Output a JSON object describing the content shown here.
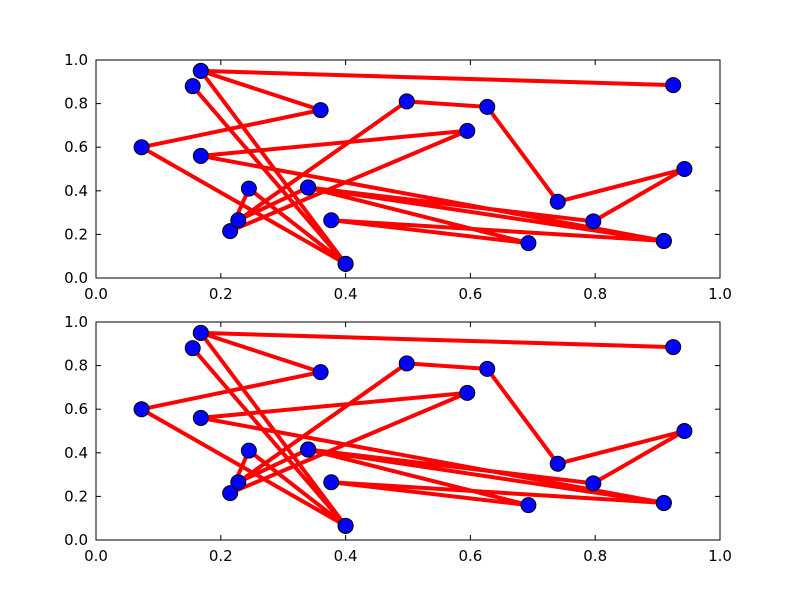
{
  "chart_data": [
    {
      "type": "line",
      "title": "",
      "xlabel": "",
      "ylabel": "",
      "xlim": [
        0.0,
        1.0
      ],
      "ylim": [
        0.0,
        1.0
      ],
      "x_ticks": [
        "0.0",
        "0.2",
        "0.4",
        "0.6",
        "0.8",
        "1.0"
      ],
      "y_ticks": [
        "0.0",
        "0.2",
        "0.4",
        "0.6",
        "0.8",
        "1.0"
      ],
      "grid": false,
      "legend": "none",
      "line_color": "#ff0000",
      "marker_color": "#0000ff",
      "marker_edge_color": "#000000",
      "x": [
        0.155,
        0.4,
        0.168,
        0.925,
        0.168,
        0.36,
        0.073,
        0.4,
        0.245,
        0.215,
        0.595,
        0.168,
        0.91,
        0.34,
        0.693,
        0.377,
        0.91,
        0.34,
        0.228,
        0.498,
        0.627,
        0.74,
        0.943,
        0.797,
        0.34
      ],
      "y": [
        0.88,
        0.065,
        0.95,
        0.885,
        0.95,
        0.77,
        0.6,
        0.065,
        0.41,
        0.215,
        0.675,
        0.56,
        0.17,
        0.415,
        0.16,
        0.265,
        0.17,
        0.415,
        0.265,
        0.81,
        0.785,
        0.35,
        0.5,
        0.26,
        0.415
      ]
    },
    {
      "type": "line",
      "title": "",
      "xlabel": "",
      "ylabel": "",
      "xlim": [
        0.0,
        1.0
      ],
      "ylim": [
        0.0,
        1.0
      ],
      "x_ticks": [
        "0.0",
        "0.2",
        "0.4",
        "0.6",
        "0.8",
        "1.0"
      ],
      "y_ticks": [
        "0.0",
        "0.2",
        "0.4",
        "0.6",
        "0.8",
        "1.0"
      ],
      "grid": false,
      "legend": "none",
      "line_color": "#ff0000",
      "marker_color": "#0000ff",
      "marker_edge_color": "#000000",
      "x": [
        0.155,
        0.4,
        0.168,
        0.925,
        0.168,
        0.36,
        0.073,
        0.4,
        0.245,
        0.215,
        0.595,
        0.168,
        0.91,
        0.34,
        0.693,
        0.377,
        0.91,
        0.34,
        0.228,
        0.498,
        0.627,
        0.74,
        0.943,
        0.797,
        0.34
      ],
      "y": [
        0.88,
        0.065,
        0.95,
        0.885,
        0.95,
        0.77,
        0.6,
        0.065,
        0.41,
        0.215,
        0.675,
        0.56,
        0.17,
        0.415,
        0.16,
        0.265,
        0.17,
        0.415,
        0.265,
        0.81,
        0.785,
        0.35,
        0.5,
        0.26,
        0.415
      ]
    }
  ]
}
